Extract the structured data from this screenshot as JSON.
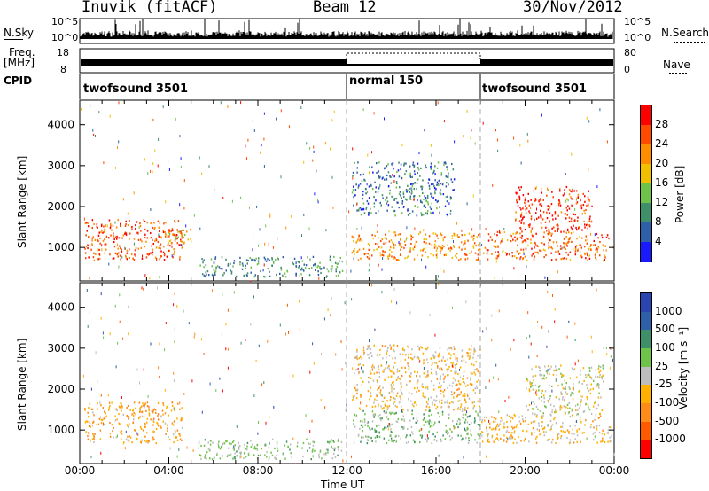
{
  "header": {
    "station": "Inuvik (fitACF)",
    "beam": "Beam 12",
    "date": "30/Nov/2012"
  },
  "left_labels": {
    "nsky": "N.Sky",
    "freq": "Freq.",
    "freq_unit": "[MHz]",
    "cpid": "CPID"
  },
  "right_labels": {
    "nsearch": "N.Search",
    "nave": "Nave"
  },
  "noise_axis": {
    "top": "10^5",
    "bottom": "10^0"
  },
  "freq_axis": {
    "top": "18",
    "bottom": "8"
  },
  "nave_axis": {
    "top": "80",
    "bottom": "0"
  },
  "cpid_segments": [
    {
      "name": "twofsound 3501",
      "start": "00:00",
      "end": "12:00"
    },
    {
      "name": "normal 150",
      "start": "12:00",
      "end": "18:00"
    },
    {
      "name": "twofsound 3501",
      "start": "18:00",
      "end": "24:00"
    }
  ],
  "colors": {
    "power": [
      "#1a1aff",
      "#2f5fa8",
      "#3f8f6a",
      "#6fc24a",
      "#f0c000",
      "#ff8c00",
      "#ff4a00",
      "#ff0000"
    ],
    "velocity": [
      "#ff0000",
      "#ff5a00",
      "#ff8c1a",
      "#ffb000",
      "#bdbdbd",
      "#6fc24a",
      "#3f8f6a",
      "#2f5fa8",
      "#2a45b0"
    ],
    "grey_scatter": "#bdbdbd",
    "dashed_line": "#aaaaaa"
  },
  "power_colorbar": {
    "label": "Power [dB]",
    "ticks": [
      "28",
      "24",
      "20",
      "16",
      "12",
      "8",
      "4"
    ]
  },
  "velocity_colorbar": {
    "label": "Velocity [m s⁻¹]",
    "ticks": [
      "1000",
      "500",
      "100",
      "25",
      "-25",
      "-100",
      "-500",
      "-1000"
    ]
  },
  "chart_data": [
    {
      "type": "heatmap",
      "title": "",
      "xlabel": "Time UT",
      "ylabel": "Slant Range [km]",
      "x_ticks": [
        "00:00",
        "04:00",
        "08:00",
        "12:00",
        "16:00",
        "20:00",
        "00:00"
      ],
      "y_ticks": [
        "1000",
        "2000",
        "3000",
        "4000"
      ],
      "xlim": [
        0,
        24
      ],
      "ylim": [
        180,
        4600
      ],
      "quantity": "Power [dB]",
      "colorbar_range": [
        0,
        32
      ],
      "echo_regions": [
        {
          "t_start": 0.2,
          "t_end": 4.6,
          "r_low": 700,
          "r_high": 1700,
          "value": 26
        },
        {
          "t_start": 3.8,
          "t_end": 5.0,
          "r_low": 1100,
          "r_high": 1500,
          "value": 18
        },
        {
          "t_start": 5.3,
          "t_end": 11.8,
          "r_low": 300,
          "r_high": 800,
          "value": 10
        },
        {
          "t_start": 12.2,
          "t_end": 18.0,
          "r_low": 700,
          "r_high": 1400,
          "value": 22
        },
        {
          "t_start": 12.2,
          "t_end": 16.8,
          "r_low": 1800,
          "r_high": 3100,
          "value": 8
        },
        {
          "t_start": 18.0,
          "t_end": 23.8,
          "r_low": 700,
          "r_high": 1400,
          "value": 24
        },
        {
          "t_start": 19.5,
          "t_end": 23.0,
          "r_low": 1400,
          "r_high": 2500,
          "value": 28
        }
      ]
    },
    {
      "type": "heatmap",
      "title": "",
      "xlabel": "Time UT",
      "ylabel": "Slant Range [km]",
      "x_ticks": [
        "00:00",
        "04:00",
        "08:00",
        "12:00",
        "16:00",
        "20:00",
        "00:00"
      ],
      "y_ticks": [
        "1000",
        "2000",
        "3000",
        "4000"
      ],
      "xlim": [
        0,
        24
      ],
      "ylim": [
        180,
        4600
      ],
      "quantity": "Velocity [m s⁻¹]",
      "colorbar_range": [
        -1000,
        1000
      ],
      "echo_regions": [
        {
          "t_start": 0.2,
          "t_end": 4.6,
          "r_low": 700,
          "r_high": 1700,
          "value": -300
        },
        {
          "t_start": 5.3,
          "t_end": 11.8,
          "r_low": 300,
          "r_high": 800,
          "value": 150
        },
        {
          "t_start": 12.2,
          "t_end": 18.0,
          "r_low": 700,
          "r_high": 1500,
          "value": 200
        },
        {
          "t_start": 12.2,
          "t_end": 18.0,
          "r_low": 1500,
          "r_high": 3100,
          "value": -150
        },
        {
          "t_start": 18.0,
          "t_end": 23.8,
          "r_low": 700,
          "r_high": 1400,
          "value": -200
        },
        {
          "t_start": 20.0,
          "t_end": 23.5,
          "r_low": 1400,
          "r_high": 2600,
          "value": 0
        }
      ]
    }
  ]
}
